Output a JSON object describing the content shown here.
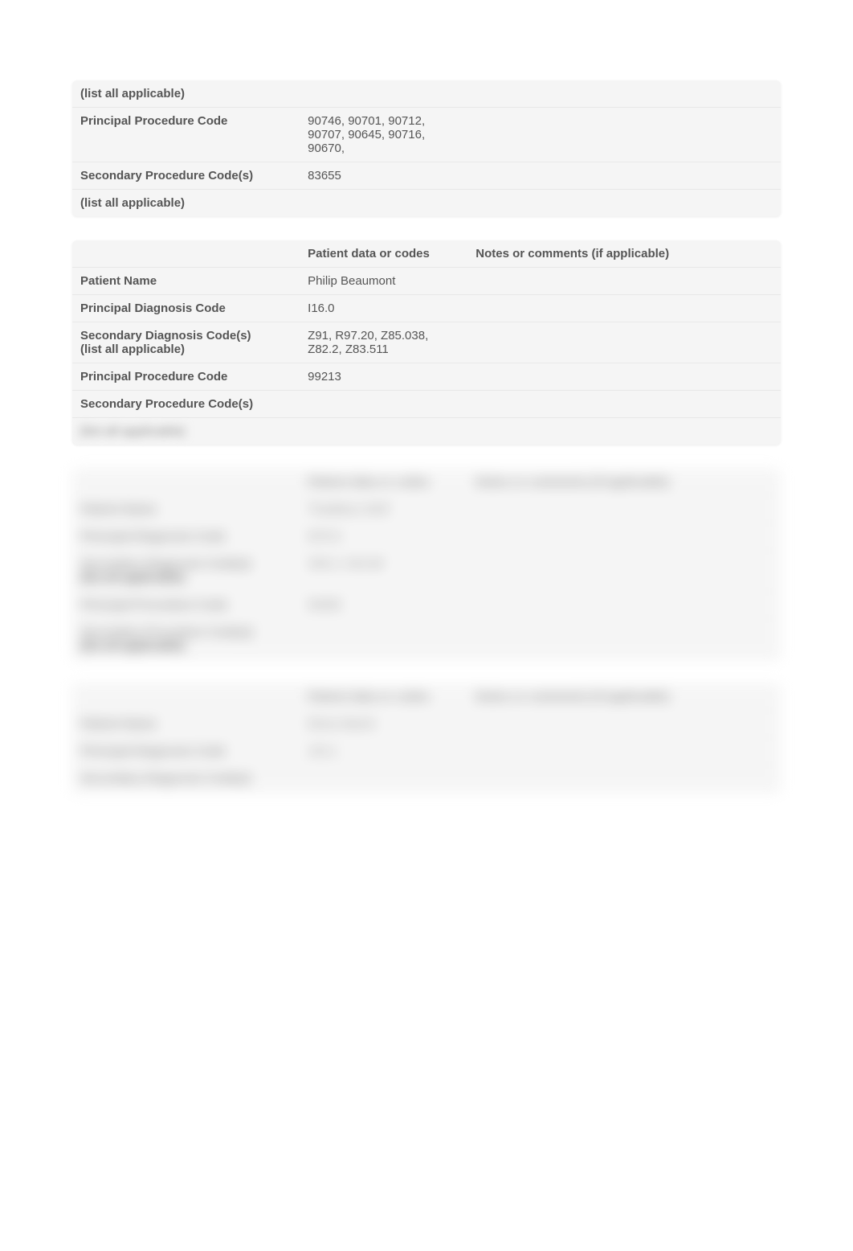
{
  "section1": {
    "rows": [
      {
        "label": "(list all applicable)",
        "data": "",
        "notes": ""
      },
      {
        "label": "Principal Procedure Code",
        "data": "90746, 90701, 90712, 90707, 90645, 90716, 90670,",
        "notes": ""
      },
      {
        "label": "Secondary Procedure Code(s)",
        "data": "83655",
        "notes": ""
      },
      {
        "label": "(list all applicable)",
        "data": "",
        "notes": ""
      }
    ]
  },
  "section2": {
    "header": {
      "col2": "Patient data or codes",
      "col3": "Notes or comments (if applicable)"
    },
    "rows": [
      {
        "label": "Patient Name",
        "data": "Philip Beaumont",
        "notes": ""
      },
      {
        "label": "Principal Diagnosis Code",
        "data": "I16.0",
        "notes": ""
      },
      {
        "label": "Secondary Diagnosis Code(s)",
        "sublabel": "(list all applicable)",
        "data": "Z91, R97.20, Z85.038, Z82.2, Z83.511",
        "notes": ""
      },
      {
        "label": "Principal Procedure Code",
        "data": "99213",
        "notes": ""
      },
      {
        "label": "Secondary Procedure Code(s)",
        "data": "",
        "notes": ""
      },
      {
        "label_blurred": "(list all applicable)",
        "data": "",
        "notes": "",
        "blurred": true
      }
    ]
  },
  "section3_blurred": {
    "header": {
      "col2": "Patient data or codes",
      "col3": "Notes or comments (if applicable)"
    },
    "rows": [
      {
        "label": "Patient Name",
        "data": "Thaddeus Wolf",
        "notes": ""
      },
      {
        "label": "Principal Diagnosis Code",
        "data": "M79.0",
        "notes": ""
      },
      {
        "label": "Secondary Diagnosis Code(s)",
        "sublabel": "(list all applicable)",
        "data": "Z99.2, K92.80",
        "notes": ""
      },
      {
        "label": "Principal Procedure Code",
        "data": "99285",
        "notes": ""
      },
      {
        "label": "Secondary Procedure Code(s)",
        "sublabel": "(list all applicable)",
        "data": "",
        "notes": ""
      }
    ]
  },
  "section4_blurred": {
    "header": {
      "col2": "Patient data or codes",
      "col3": "Notes or comments (if applicable)"
    },
    "rows": [
      {
        "label": "Patient Name",
        "data": "Elena Marsh",
        "notes": ""
      },
      {
        "label": "Principal Diagnosis Code",
        "data": "J44.1",
        "notes": ""
      },
      {
        "label": "Secondary Diagnosis Code(s)",
        "data": "",
        "notes": ""
      }
    ]
  },
  "colors": {
    "background": "#f5f5f5",
    "text": "#555555",
    "border": "#e8e8e8"
  }
}
